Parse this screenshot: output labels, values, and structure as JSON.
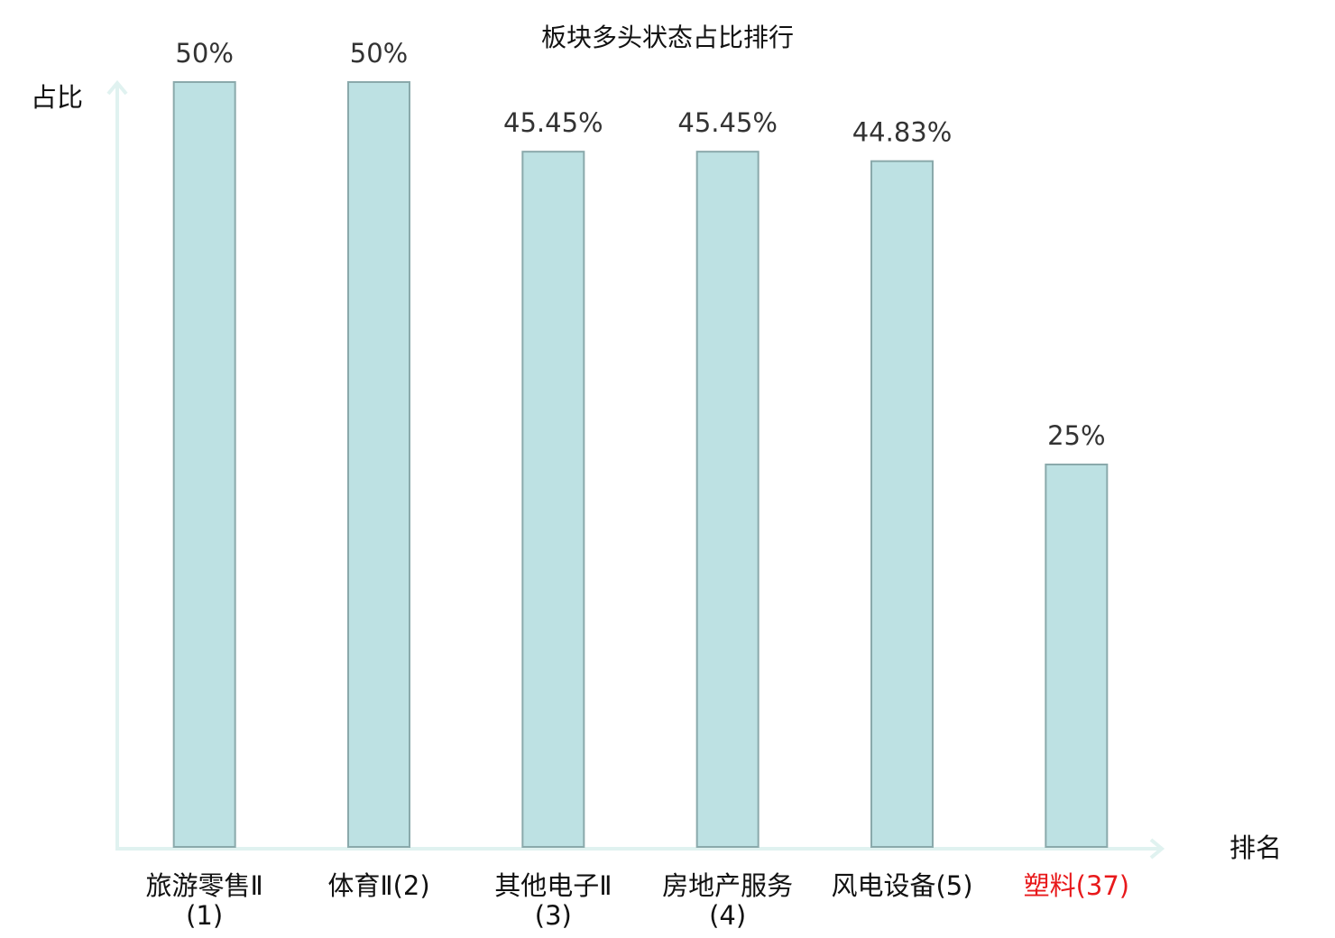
{
  "chart_data": {
    "type": "bar",
    "title": "板块多头状态占比排行",
    "y_label": "占比",
    "x_label": "排名",
    "categories": [
      "旅游零售Ⅱ(1)",
      "体育Ⅱ(2)",
      "其他电子Ⅱ(3)",
      "房地产服务(4)",
      "风电设备(5)",
      "塑料(37)"
    ],
    "values": [
      50,
      50,
      45.45,
      45.45,
      44.83,
      25
    ],
    "value_labels": [
      "50%",
      "50%",
      "45.45%",
      "45.45%",
      "44.83%",
      "25%"
    ],
    "color": "#bde1e3",
    "edge_color": "#8aa9ab",
    "highlight": {
      "index": 5,
      "color": "#e8191b"
    },
    "ylim": [
      0,
      50
    ]
  }
}
